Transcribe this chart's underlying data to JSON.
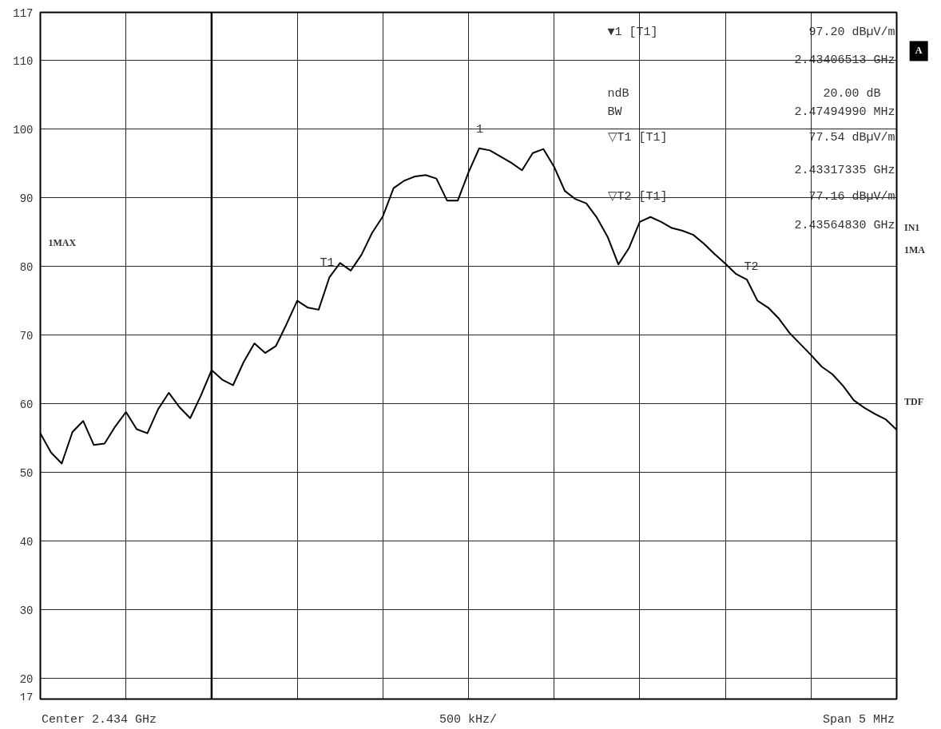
{
  "chart_data": {
    "type": "line",
    "categories": [
      null,
      null,
      null,
      null,
      null,
      null,
      null,
      null,
      null,
      null,
      null,
      null,
      null,
      null,
      null,
      null,
      null,
      null,
      null,
      null,
      null,
      null,
      null,
      null,
      null,
      null,
      null,
      null,
      null,
      null,
      null,
      null,
      null,
      null,
      null,
      null,
      null,
      null,
      null,
      null,
      null,
      null,
      null,
      null,
      null,
      null,
      null,
      null,
      null,
      null,
      null,
      null,
      null,
      null,
      null,
      null,
      null,
      null,
      null,
      null,
      null,
      null,
      null,
      null,
      null,
      null,
      null,
      null,
      null,
      null,
      null,
      null,
      null,
      null,
      null,
      null,
      null,
      null,
      null,
      null,
      null
    ],
    "series": [
      {
        "color": "#000000",
        "values": [
          55.7,
          52.9,
          51.3,
          55.9,
          57.5,
          54.0,
          54.2,
          56.7,
          58.8,
          56.3,
          55.7,
          59.2,
          61.6,
          59.5,
          57.9,
          61.2,
          64.9,
          63.5,
          62.7,
          66.1,
          68.8,
          67.4,
          68.4,
          71.6,
          75.0,
          74.0,
          73.7,
          78.4,
          80.5,
          79.4,
          81.7,
          84.9,
          87.3,
          91.4,
          92.5,
          93.1,
          93.3,
          92.8,
          89.6,
          89.6,
          93.7,
          97.2,
          96.9,
          96.0,
          95.1,
          94.0,
          96.5,
          97.1,
          94.5,
          91.0,
          89.8,
          89.2,
          87.1,
          84.3,
          80.3,
          82.7,
          86.5,
          87.2,
          86.5,
          85.6,
          85.2,
          84.6,
          83.3,
          81.8,
          80.4,
          78.9,
          78.1,
          75.0,
          74.0,
          72.4,
          70.3,
          68.7,
          67.1,
          65.4,
          64.3,
          62.6,
          60.5,
          59.4,
          58.5,
          57.7,
          56.2
        ]
      }
    ],
    "ylim": [
      17,
      117
    ],
    "yticks": [
      17,
      20,
      30,
      40,
      50,
      60,
      70,
      80,
      90,
      100,
      110,
      117
    ],
    "tick_labels": "y",
    "grid": true,
    "annotations": [
      "▼1 [T1]",
      "97.20 dBµV/m",
      "2.43406513 GHz",
      "ndB",
      "20.00 dB",
      "BW",
      "2.47494990 MHz",
      "▽T1 [T1]",
      "77.54 dBµV/m",
      "2.43317335 GHz",
      "▽T2 [T1]",
      "77.16 dBµV/m",
      "2.43564830 GHz",
      "1MAX",
      "A",
      "IN1",
      "1MA",
      "TDF",
      "Center 2.434 GHz",
      "500 kHz/",
      "Span 5 MHz",
      "1",
      "T1",
      "T2"
    ]
  }
}
